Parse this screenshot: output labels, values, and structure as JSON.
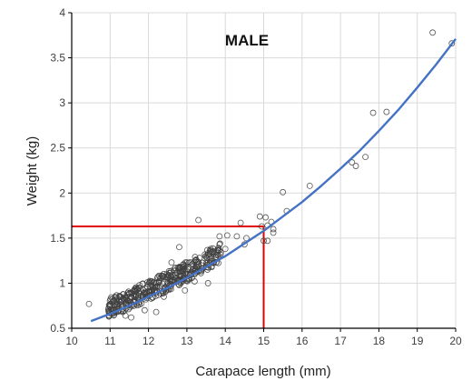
{
  "chart_data": {
    "type": "scatter",
    "title": "MALE",
    "xlabel": "Carapace length (mm)",
    "ylabel": "Weight (kg)",
    "xlim": [
      10,
      20
    ],
    "ylim": [
      0.5,
      4
    ],
    "x_ticks": [
      "10",
      "11",
      "12",
      "13",
      "14",
      "15",
      "16",
      "17",
      "18",
      "19",
      "20"
    ],
    "y_ticks": [
      "0.5",
      "1",
      "1.5",
      "2",
      "2.5",
      "3",
      "3.5",
      "4"
    ],
    "grid": true,
    "colors": {
      "points": "#555555",
      "fit_line": "#4472C4",
      "reference_lines": "#E00000"
    },
    "reference_point": {
      "x": 15,
      "y": 1.63
    },
    "fit_curve": {
      "x": [
        10.5,
        11,
        11.5,
        12,
        12.5,
        13,
        13.5,
        14,
        14.5,
        15,
        15.5,
        16,
        16.5,
        17,
        17.5,
        18,
        18.5,
        19,
        19.5,
        20
      ],
      "y": [
        0.58,
        0.66,
        0.75,
        0.85,
        0.95,
        1.06,
        1.18,
        1.3,
        1.44,
        1.58,
        1.74,
        1.9,
        2.08,
        2.27,
        2.47,
        2.69,
        2.92,
        3.17,
        3.43,
        3.71
      ]
    },
    "series": [
      {
        "x": [
          10.45,
          11.4,
          11.55,
          11.9,
          12.2,
          12.4,
          12.6,
          12.8,
          12.95,
          13.2,
          13.3,
          13.55,
          13.85,
          13.85,
          14,
          14.05,
          14.3,
          14.4,
          14.5,
          14.55,
          14.9,
          14.95,
          15,
          15.05,
          15.1,
          15.1,
          15.2,
          15.25,
          15.25,
          15.5,
          15.6,
          16.2,
          17.3,
          17.4,
          17.65,
          17.85,
          18.2,
          19.4,
          19.9
        ],
        "y": [
          0.77,
          0.64,
          0.62,
          0.7,
          0.68,
          0.85,
          1.23,
          1.4,
          0.92,
          1.02,
          1.7,
          1.0,
          1.43,
          1.52,
          1.38,
          1.53,
          1.52,
          1.67,
          1.43,
          1.5,
          1.74,
          1.63,
          1.47,
          1.73,
          1.64,
          1.47,
          1.68,
          1.6,
          1.56,
          2.01,
          1.8,
          2.08,
          2.34,
          2.3,
          2.4,
          2.89,
          2.9,
          3.78,
          3.66
        ]
      }
    ]
  }
}
